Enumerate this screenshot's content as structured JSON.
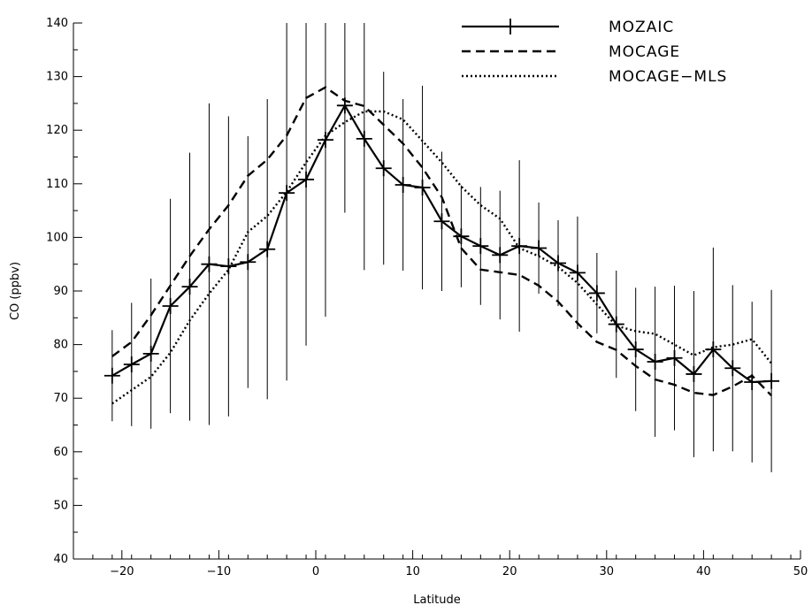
{
  "chart_data": {
    "type": "line",
    "title": "",
    "xlabel": "Latitude",
    "ylabel": "CO (ppbv)",
    "xlim": [
      -25,
      50
    ],
    "ylim": [
      40,
      140
    ],
    "xticks": [
      -20,
      -10,
      0,
      10,
      20,
      30,
      40,
      50
    ],
    "yticks": [
      40,
      50,
      60,
      70,
      80,
      90,
      100,
      110,
      120,
      130,
      140
    ],
    "grid": false,
    "legend_position": "top-right",
    "series": [
      {
        "name": "MOZAIC",
        "style": "solid",
        "marker": "plus",
        "x": [
          -21,
          -19,
          -17,
          -15,
          -13,
          -11,
          -9,
          -7,
          -5,
          -3,
          -1,
          1,
          3,
          5,
          7,
          9,
          11,
          13,
          15,
          17,
          19,
          21,
          23,
          25,
          27,
          29,
          31,
          33,
          35,
          37,
          39,
          41,
          43,
          45,
          47
        ],
        "y": [
          74.2,
          76.3,
          78.3,
          87.2,
          90.8,
          95.0,
          94.6,
          95.4,
          97.8,
          108.3,
          110.8,
          118.2,
          124.6,
          118.4,
          112.9,
          109.8,
          109.3,
          103.0,
          100.2,
          98.4,
          96.7,
          98.4,
          98.0,
          95.2,
          93.4,
          89.6,
          83.8,
          79.1,
          76.8,
          77.5,
          74.5,
          79.1,
          75.6,
          73.0,
          73.2
        ],
        "err": [
          8.5,
          11.5,
          14.0,
          20.0,
          25.0,
          30.0,
          28.0,
          23.5,
          28.0,
          35.0,
          31.0,
          33.0,
          20.0,
          24.5,
          18.0,
          16.0,
          19.0,
          13.0,
          9.5,
          11.0,
          12.0,
          16.0,
          8.5,
          8.0,
          10.5,
          7.5,
          10.0,
          11.5,
          14.0,
          13.5,
          15.5,
          19.0,
          15.5,
          15.0,
          17.0
        ]
      },
      {
        "name": "MOCAGE",
        "style": "dashed",
        "x": [
          -21,
          -19,
          -17,
          -15,
          -13,
          -11,
          -9,
          -7,
          -5,
          -3,
          -1,
          1,
          3,
          5,
          7,
          9,
          11,
          13,
          15,
          17,
          19,
          21,
          23,
          25,
          27,
          29,
          31,
          33,
          35,
          37,
          39,
          41,
          43,
          45,
          47
        ],
        "y": [
          77.8,
          80.5,
          85.5,
          91.0,
          96.5,
          101.5,
          106.0,
          111.5,
          114.5,
          119.0,
          126.0,
          128.0,
          125.5,
          124.5,
          121.0,
          117.5,
          113.0,
          107.5,
          98.0,
          94.0,
          93.5,
          93.0,
          91.0,
          88.0,
          84.0,
          80.5,
          79.0,
          76.0,
          73.5,
          72.5,
          71.0,
          70.6,
          72.2,
          74.2,
          70.5
        ]
      },
      {
        "name": "MOCAGE-MLS",
        "style": "dotted",
        "x": [
          -21,
          -19,
          -17,
          -15,
          -13,
          -11,
          -9,
          -7,
          -5,
          -3,
          -1,
          1,
          3,
          5,
          7,
          9,
          11,
          13,
          15,
          17,
          19,
          21,
          23,
          25,
          27,
          29,
          31,
          33,
          35,
          37,
          39,
          41,
          43,
          45,
          47
        ],
        "y": [
          69.0,
          71.5,
          74.0,
          78.5,
          84.5,
          89.5,
          94.0,
          101.0,
          104.0,
          108.5,
          114.0,
          119.0,
          121.5,
          123.5,
          123.5,
          122.0,
          118.0,
          114.0,
          109.5,
          106.0,
          103.5,
          98.0,
          96.5,
          94.5,
          91.5,
          87.5,
          83.5,
          82.5,
          82.0,
          80.0,
          78.0,
          79.5,
          80.0,
          81.0,
          76.5
        ]
      }
    ]
  }
}
